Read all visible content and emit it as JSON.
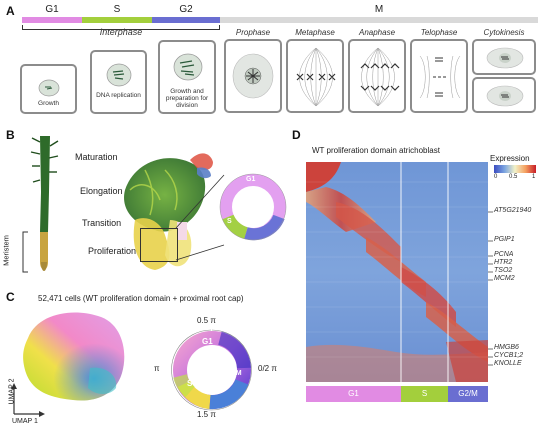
{
  "panels": {
    "a": "A",
    "b": "B",
    "c": "C",
    "d": "D"
  },
  "panel_a": {
    "phases_bar": [
      {
        "label": "G1",
        "color": "#e18be3"
      },
      {
        "label": "S",
        "color": "#a3cf3c"
      },
      {
        "label": "G2",
        "color": "#6a6ed1"
      },
      {
        "label": "M",
        "color": "#d9d9d9"
      }
    ],
    "interphase_label": "Interphase",
    "interphase_stages": [
      "Growth",
      "DNA replication",
      "Growth and preparation for division"
    ],
    "mitosis_stages": [
      "Prophase",
      "Metaphase",
      "Anaphase",
      "Telophase",
      "Cytokinesis"
    ]
  },
  "panel_b": {
    "zones": [
      "Maturation",
      "Elongation",
      "Transition",
      "Proliferation"
    ],
    "meristem_label": "Meristem",
    "ring_labels": [
      "G1",
      "S",
      "G2/M"
    ]
  },
  "panel_c": {
    "title": "52,471 cells (WT proliferation domain + proximal root cap)",
    "axis_x": "UMAP 1",
    "axis_y": "UMAP 2",
    "ring_labels": [
      "G1",
      "S",
      "G2 /M"
    ],
    "angles": {
      "top": "0.5 π",
      "left": "π",
      "right": "0/2 π",
      "bottom": "1.5 π"
    }
  },
  "panel_d": {
    "title": "WT proliferation domain atrichoblast",
    "legend_title": "Expression",
    "legend_ticks": [
      "0",
      "0.5",
      "1"
    ],
    "genes": [
      "AT5G21940",
      "PGIP1",
      "PCNA",
      "HTR2",
      "TSO2",
      "MCM2",
      "HMGB6",
      "CYCB1;2",
      "KNOLLE"
    ],
    "phase_bar": [
      {
        "label": "G1",
        "color": "#e18be3"
      },
      {
        "label": "S",
        "color": "#a3cf3c"
      },
      {
        "label": "G2/M",
        "color": "#6a6ed1"
      }
    ]
  }
}
